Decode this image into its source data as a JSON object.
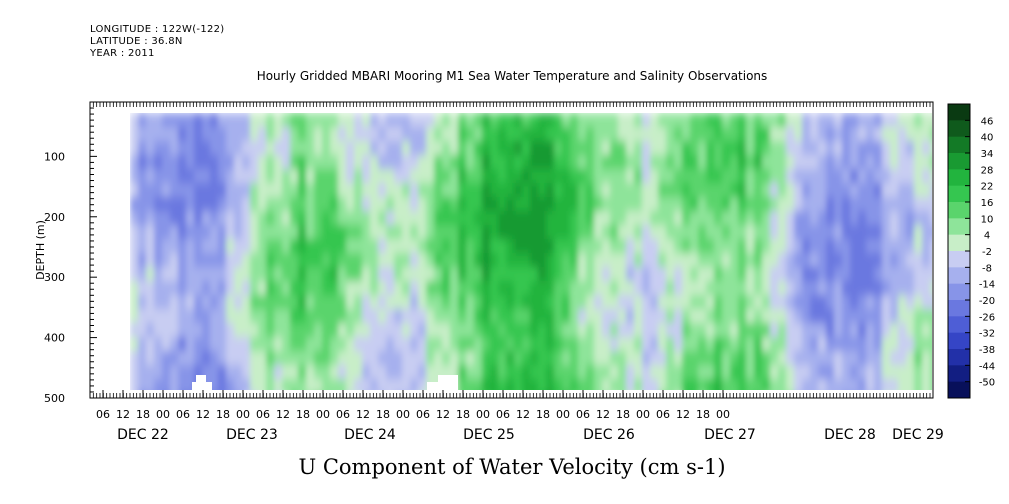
{
  "header": {
    "longitude": "LONGITUDE : 122W(-122)",
    "latitude": "LATITUDE : 36.8N",
    "year": "YEAR : 2011"
  },
  "chart_data": {
    "type": "heatmap",
    "title": "Hourly Gridded MBARI Mooring M1 Sea Water Temperature and Salinity Observations",
    "xlabel": "U Component of Water Velocity (cm s-1)",
    "ylabel": "DEPTH (m)",
    "y_range_m": [
      10,
      500
    ],
    "y_data_range_m": [
      20,
      485
    ],
    "y_inverted": true,
    "y_ticks": [
      100,
      200,
      300,
      400,
      500
    ],
    "x_hour_ticks": [
      "06",
      "12",
      "18",
      "00",
      "06",
      "12",
      "18",
      "00",
      "06",
      "12",
      "18",
      "00",
      "06",
      "12",
      "18",
      "00",
      "06",
      "12",
      "18",
      "00",
      "06",
      "12",
      "18",
      "00",
      "06",
      "12",
      "18",
      "00",
      "06",
      "12",
      "18",
      "00"
    ],
    "x_day_labels": [
      "DEC 22",
      "DEC 23",
      "DEC 24",
      "DEC 25",
      "DEC 26",
      "DEC 27",
      "DEC 28",
      "DEC 29"
    ],
    "x_data_start": "DEC 22 10:00",
    "colorbar": {
      "labels": [
        "46",
        "40",
        "34",
        "28",
        "22",
        "16",
        "10",
        "4",
        "-2",
        "-8",
        "-14",
        "-20",
        "-26",
        "-32",
        "-38",
        "-44",
        "-50"
      ],
      "colors": [
        "#0a3a12",
        "#0f5a1c",
        "#137a26",
        "#199a32",
        "#22b43e",
        "#35c650",
        "#5ad46c",
        "#8ee49a",
        "#c8eec8",
        "#c8cdf2",
        "#a6b0ee",
        "#8794e8",
        "#6a78e0",
        "#4e5ed6",
        "#3545c6",
        "#2230a8",
        "#121e82",
        "#08105a"
      ]
    },
    "grid": false,
    "legend": "colorbar-right"
  }
}
